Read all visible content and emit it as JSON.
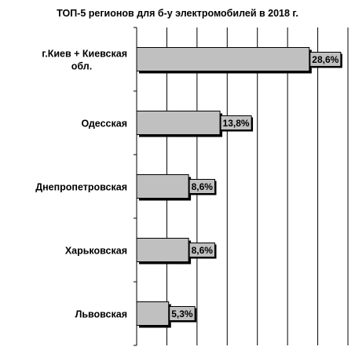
{
  "chart_data": {
    "type": "bar",
    "orientation": "horizontal",
    "title": "ТОП-5 регионов для б-у электромобилей в 2018 г.",
    "categories": [
      [
        "г.Киев + Киевская",
        "обл."
      ],
      [
        "Одесская"
      ],
      [
        "Днепропетровская"
      ],
      [
        "Харьковская"
      ],
      [
        "Львовская"
      ]
    ],
    "values": [
      28.6,
      13.8,
      8.6,
      8.6,
      5.3
    ],
    "data_labels": [
      "28,6%",
      "13,8%",
      "8,6%",
      "8,6%",
      "5,3%"
    ],
    "xlim": [
      0,
      35
    ],
    "x_gridline_step": 5,
    "grid": true,
    "legend": "none",
    "bar_color": "#c0c0c0",
    "bar_shadow_color": "#000000"
  }
}
